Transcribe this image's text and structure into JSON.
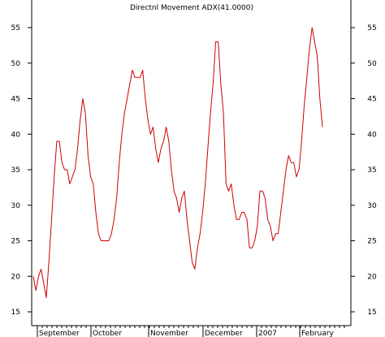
{
  "chart_data": {
    "type": "line",
    "title": "Directnl Movement ADX(41.0000)",
    "ylim": [
      14,
      59
    ],
    "y_ticks": [
      15,
      20,
      25,
      30,
      35,
      40,
      45,
      50,
      55
    ],
    "y_tick_labels": [
      "15",
      "20",
      "25",
      "30",
      "35",
      "40",
      "45",
      "50",
      "55"
    ],
    "x_ticks": [
      "September",
      "October",
      "November",
      "December",
      "2007",
      "February"
    ],
    "grid": false,
    "line_color": "#cc0000",
    "series": [
      {
        "values": [
          20,
          18,
          20,
          21,
          19,
          17,
          22,
          28,
          34,
          39,
          39,
          36,
          35,
          35,
          33,
          34,
          35,
          38,
          42,
          45,
          43,
          37,
          34,
          33,
          29,
          26,
          25,
          25,
          25,
          25,
          26,
          28,
          31,
          36,
          40,
          43,
          45,
          47,
          49,
          48,
          48,
          48,
          49,
          45,
          42,
          40,
          41,
          38,
          36,
          38,
          39,
          41,
          39,
          35,
          32,
          31,
          29,
          31,
          32,
          28,
          25,
          22,
          21,
          24,
          26,
          29,
          33,
          38,
          43,
          47,
          53,
          53,
          47,
          43,
          33,
          32,
          33,
          30,
          28,
          28,
          29,
          29,
          28,
          24,
          24,
          25,
          27,
          32,
          32,
          31,
          28,
          27,
          25,
          26,
          26,
          29,
          32,
          35,
          37,
          36,
          36,
          34,
          35,
          39,
          44,
          48,
          52,
          55,
          53,
          51,
          45,
          41
        ]
      }
    ]
  }
}
